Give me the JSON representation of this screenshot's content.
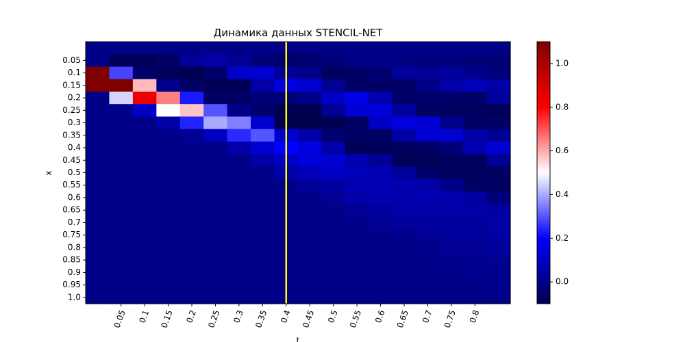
{
  "chart_data": {
    "type": "heatmap",
    "title": "Динамика данных STENCIL-NET",
    "xlabel": "t",
    "ylabel": "x",
    "x_ticks": [
      "0.05",
      "0.1",
      "0.15",
      "0.2",
      "0.25",
      "0.3",
      "0.35",
      "0.4",
      "0.45",
      "0.5",
      "0.55",
      "0.6",
      "0.65",
      "0.7",
      "0.75",
      "0.8"
    ],
    "y_ticks": [
      "0.05",
      "0.1",
      "0.15",
      "0.2",
      "0.25",
      "0.3",
      "0.35",
      "0.4",
      "0.45",
      "0.5",
      "0.55",
      "0.6",
      "0.65",
      "0.7",
      "0.75",
      "0.8",
      "0.85",
      "0.9",
      "0.95",
      "1.0"
    ],
    "colorbar": {
      "colormap": "seismic",
      "vmin": -0.1,
      "vmax": 1.1,
      "ticks": [
        "0.0",
        "0.2",
        "0.4",
        "0.6",
        "0.8",
        "1.0"
      ],
      "tick_values": [
        0.0,
        0.2,
        0.4,
        0.6,
        0.8,
        1.0
      ]
    },
    "vertical_line": {
      "x": "0.4",
      "color": "#ffff00"
    },
    "grid": false,
    "values": [
      [
        0,
        0,
        0,
        0,
        0,
        0,
        0,
        0,
        0,
        0,
        0,
        0,
        0,
        0,
        0,
        0,
        0,
        0
      ],
      [
        0,
        -0.08,
        -0.08,
        -0.06,
        0.03,
        0.05,
        0.02,
        -0.03,
        -0.05,
        -0.04,
        -0.02,
        0,
        0,
        -0.01,
        -0.02,
        -0.02,
        -0.03,
        -0.03
      ],
      [
        1.1,
        0.28,
        -0.05,
        -0.08,
        -0.09,
        -0.05,
        0.11,
        0.12,
        0.03,
        0,
        -0.07,
        -0.06,
        -0.04,
        0.03,
        0.02,
        0.03,
        0.01,
        -0.02
      ],
      [
        1.1,
        1.1,
        0.58,
        0,
        -0.06,
        -0.08,
        -0.08,
        0.05,
        0.15,
        0.12,
        0.02,
        -0.06,
        -0.06,
        -0.06,
        0,
        0.05,
        0.08,
        0.05
      ],
      [
        0,
        0.45,
        0.85,
        0.65,
        0.23,
        -0.06,
        -0.06,
        -0.03,
        -0.03,
        0,
        0.1,
        0.16,
        0.06,
        -0.05,
        -0.05,
        -0.05,
        -0.05,
        0.03
      ],
      [
        0,
        0,
        0.11,
        0.5,
        0.57,
        0.3,
        0,
        -0.05,
        -0.09,
        -0.09,
        0.02,
        0.13,
        0.14,
        0.03,
        -0.06,
        -0.07,
        -0.07,
        -0.08
      ],
      [
        0,
        0,
        0,
        0.05,
        0.24,
        0.4,
        0.35,
        0.12,
        -0.1,
        -0.1,
        -0.09,
        -0.06,
        0.1,
        0.15,
        0.13,
        0.01,
        -0.06,
        -0.06
      ],
      [
        0,
        0,
        0,
        0,
        0.02,
        0.1,
        0.25,
        0.3,
        0.12,
        0.05,
        -0.04,
        -0.06,
        -0.06,
        0.05,
        0.12,
        0.12,
        0.05,
        0.02
      ],
      [
        0,
        0,
        0,
        0,
        0,
        0,
        0.05,
        0.12,
        0.2,
        0.15,
        0.05,
        -0.08,
        -0.08,
        -0.07,
        -0.06,
        -0.03,
        0.07,
        0.12
      ],
      [
        0,
        0,
        0,
        0,
        0,
        0,
        0,
        0.05,
        0.1,
        0.14,
        0.12,
        0.07,
        0.02,
        -0.08,
        -0.08,
        -0.07,
        -0.07,
        0.02
      ],
      [
        0,
        0,
        0,
        0,
        0,
        0,
        0,
        0,
        0.05,
        0.08,
        0.1,
        0.08,
        0.07,
        0.03,
        -0.05,
        -0.07,
        -0.07,
        -0.06
      ],
      [
        0,
        0,
        0,
        0,
        0,
        0,
        0,
        0,
        0,
        0.03,
        0.04,
        0.07,
        0.07,
        0.06,
        0.05,
        0,
        -0.06,
        -0.07
      ],
      [
        0,
        0,
        0,
        0,
        0,
        0,
        0,
        0,
        0,
        0,
        0.02,
        0.05,
        0.06,
        0.06,
        0.07,
        0.06,
        0.04,
        -0.02
      ],
      [
        0,
        0,
        0,
        0,
        0,
        0,
        0,
        0,
        0,
        0,
        0,
        0.02,
        0.04,
        0.05,
        0.05,
        0.05,
        0.05,
        0.04
      ],
      [
        0,
        0,
        0,
        0,
        0,
        0,
        0,
        0,
        0,
        0,
        0,
        0,
        0.02,
        0.03,
        0.04,
        0.04,
        0.04,
        0.05
      ],
      [
        0,
        0,
        0,
        0,
        0,
        0,
        0,
        0,
        0,
        0,
        0,
        0,
        0,
        0.01,
        0.02,
        0.03,
        0.03,
        0.04
      ],
      [
        0,
        0,
        0,
        0,
        0,
        0,
        0,
        0,
        0,
        0,
        0,
        0,
        0,
        0,
        0.01,
        0.02,
        0.02,
        0.03
      ],
      [
        0,
        0,
        0,
        0,
        0,
        0,
        0,
        0,
        0,
        0,
        0,
        0,
        0,
        0,
        0,
        0.01,
        0.01,
        0.02
      ],
      [
        0,
        0,
        0,
        0,
        0,
        0,
        0,
        0,
        0,
        0,
        0,
        0,
        0,
        0,
        0,
        0,
        0.01,
        0.01
      ],
      [
        0,
        0,
        0,
        0,
        0,
        0,
        0,
        0,
        0,
        0,
        0,
        0,
        0,
        0,
        0,
        0,
        0,
        0.01
      ],
      [
        0,
        0,
        0,
        0,
        0,
        0,
        0,
        0,
        0,
        0,
        0,
        0,
        0,
        0,
        0,
        0,
        0,
        0
      ]
    ]
  }
}
